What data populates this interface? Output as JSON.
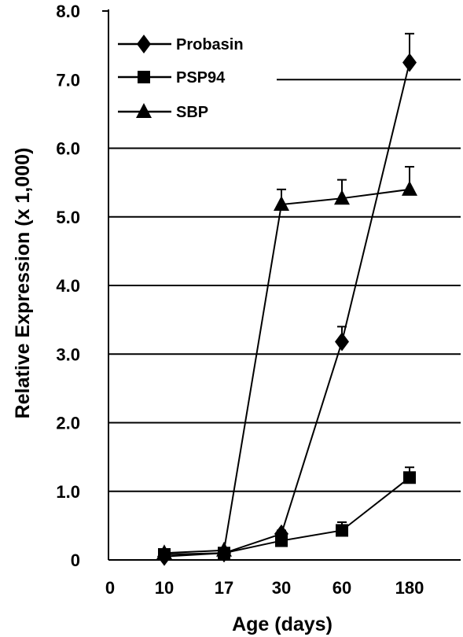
{
  "chart_data": {
    "type": "line",
    "title": "",
    "xlabel": "Age (days)",
    "ylabel": "Relative Expression (x 1,000)",
    "ylim": [
      0,
      8
    ],
    "y_ticks": [
      "0",
      "1.0",
      "2.0",
      "3.0",
      "4.0",
      "5.0",
      "6.0",
      "7.0",
      "8.0"
    ],
    "x_ticks": [
      "0",
      "10",
      "17",
      "30",
      "60",
      "180"
    ],
    "categories": [
      "10",
      "17",
      "30",
      "60",
      "180"
    ],
    "grid": "horizontal",
    "legend_position": "top-left",
    "series": [
      {
        "name": "Probasin",
        "marker": "diamond",
        "values": [
          0.05,
          0.1,
          0.38,
          3.18,
          7.25
        ],
        "errors": [
          0.02,
          0.03,
          0.05,
          0.22,
          0.42
        ]
      },
      {
        "name": "PSP94",
        "marker": "square",
        "values": [
          0.08,
          0.1,
          0.28,
          0.43,
          1.2
        ],
        "errors": [
          0.02,
          0.02,
          0.04,
          0.12,
          0.15
        ]
      },
      {
        "name": "SBP",
        "marker": "triangle",
        "values": [
          0.1,
          0.14,
          5.18,
          5.27,
          5.4
        ],
        "errors": [
          0.02,
          0.03,
          0.22,
          0.27,
          0.33
        ]
      }
    ]
  }
}
